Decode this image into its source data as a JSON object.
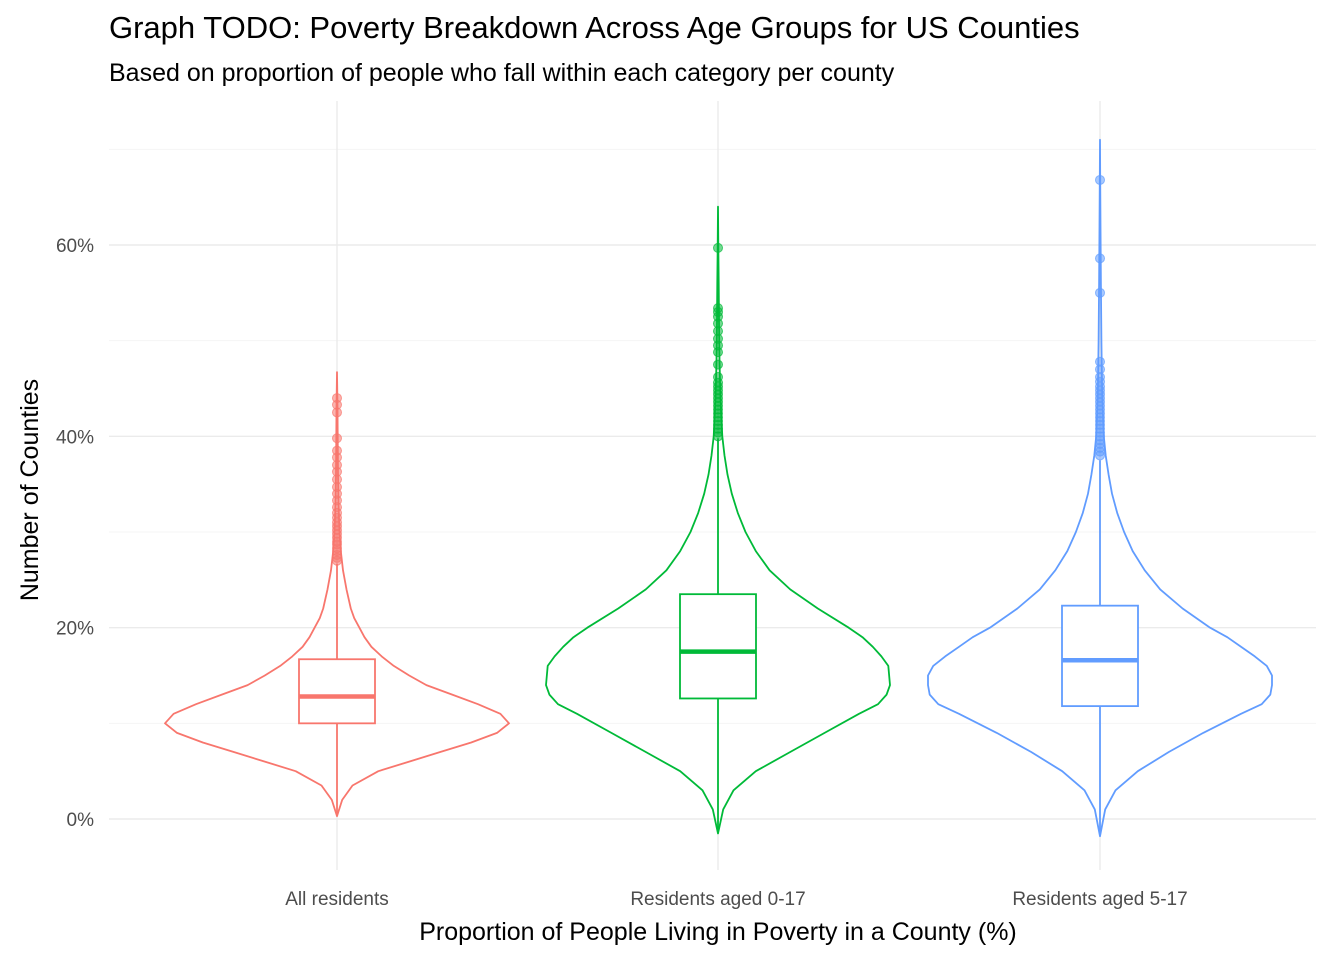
{
  "chart_data": {
    "type": "violin",
    "title": "Graph TODO: Poverty Breakdown Across Age Groups for US Counties",
    "subtitle": "Based on proportion of people who fall within each category per county",
    "xlabel": "Proportion of People Living in Poverty in a County (%)",
    "ylabel": "Number of Counties",
    "ylim": [
      -5,
      71
    ],
    "y_ticks": [
      0,
      20,
      40,
      60
    ],
    "y_tick_labels": [
      "0%",
      "20%",
      "40%",
      "60%"
    ],
    "grid": true,
    "legend": "none",
    "categories": [
      "All residents",
      "Residents aged 0-17",
      "Residents aged 5-17"
    ],
    "series": [
      {
        "name": "All residents",
        "color": "#F8766D",
        "violin": [
          [
            0.3,
            0.0
          ],
          [
            2,
            0.03
          ],
          [
            3.5,
            0.09
          ],
          [
            5,
            0.24
          ],
          [
            6,
            0.42
          ],
          [
            7,
            0.6
          ],
          [
            8,
            0.78
          ],
          [
            9,
            0.93
          ],
          [
            10,
            1.0
          ],
          [
            11,
            0.95
          ],
          [
            12,
            0.82
          ],
          [
            13,
            0.67
          ],
          [
            14,
            0.52
          ],
          [
            15,
            0.42
          ],
          [
            16,
            0.33
          ],
          [
            17,
            0.26
          ],
          [
            18,
            0.2
          ],
          [
            19,
            0.16
          ],
          [
            20,
            0.13
          ],
          [
            21,
            0.1
          ],
          [
            22,
            0.08
          ],
          [
            24,
            0.055
          ],
          [
            26,
            0.035
          ],
          [
            28,
            0.022
          ],
          [
            30,
            0.014
          ],
          [
            33,
            0.009
          ],
          [
            36,
            0.006
          ],
          [
            40,
            0.004
          ],
          [
            43,
            0.003
          ],
          [
            46.7,
            0.0
          ]
        ],
        "box": {
          "lower_whisker": 0.3,
          "q1": 10.0,
          "median": 12.8,
          "q3": 16.7,
          "upper_whisker": 26.7
        },
        "outliers": [
          27,
          27.3,
          27.6,
          28,
          28.3,
          28.7,
          29,
          29.4,
          29.8,
          30.2,
          30.6,
          31,
          31.5,
          32,
          32.6,
          33.3,
          34,
          34.7,
          35.5,
          36.3,
          37,
          37.8,
          38.5,
          39.8,
          42.5,
          43.3,
          44
        ]
      },
      {
        "name": "Residents aged 0-17",
        "color": "#00BA38",
        "violin": [
          [
            -1.5,
            0.0
          ],
          [
            1,
            0.03
          ],
          [
            3,
            0.09
          ],
          [
            5,
            0.22
          ],
          [
            7,
            0.42
          ],
          [
            9,
            0.62
          ],
          [
            11,
            0.82
          ],
          [
            12,
            0.93
          ],
          [
            13,
            0.98
          ],
          [
            14,
            1.0
          ],
          [
            16,
            0.99
          ],
          [
            17,
            0.95
          ],
          [
            18,
            0.9
          ],
          [
            19,
            0.84
          ],
          [
            20,
            0.76
          ],
          [
            22,
            0.58
          ],
          [
            24,
            0.42
          ],
          [
            26,
            0.3
          ],
          [
            28,
            0.22
          ],
          [
            30,
            0.16
          ],
          [
            32,
            0.115
          ],
          [
            34,
            0.08
          ],
          [
            36,
            0.055
          ],
          [
            38,
            0.038
          ],
          [
            40,
            0.025
          ],
          [
            44,
            0.014
          ],
          [
            48,
            0.009
          ],
          [
            52,
            0.006
          ],
          [
            56,
            0.004
          ],
          [
            60,
            0.002
          ],
          [
            64,
            0.0
          ]
        ],
        "box": {
          "lower_whisker": -1.5,
          "q1": 12.6,
          "median": 17.5,
          "q3": 23.5,
          "upper_whisker": 39.8
        },
        "outliers": [
          40,
          40.4,
          40.8,
          41.2,
          41.6,
          42,
          42.4,
          42.8,
          43.2,
          43.6,
          44,
          44.4,
          44.8,
          45.2,
          45.6,
          46.2,
          47.5,
          48.8,
          49.5,
          50.2,
          51,
          51.8,
          52.5,
          53,
          53.4,
          59.7
        ]
      },
      {
        "name": "Residents aged 5-17",
        "color": "#619CFF",
        "violin": [
          [
            -1.8,
            0.0
          ],
          [
            1,
            0.03
          ],
          [
            3,
            0.09
          ],
          [
            5,
            0.22
          ],
          [
            7,
            0.4
          ],
          [
            9,
            0.6
          ],
          [
            11,
            0.82
          ],
          [
            12,
            0.94
          ],
          [
            13,
            0.99
          ],
          [
            14,
            1.0
          ],
          [
            15,
            1.0
          ],
          [
            16,
            0.97
          ],
          [
            17,
            0.9
          ],
          [
            18,
            0.82
          ],
          [
            19,
            0.74
          ],
          [
            20,
            0.64
          ],
          [
            22,
            0.48
          ],
          [
            24,
            0.35
          ],
          [
            26,
            0.26
          ],
          [
            28,
            0.19
          ],
          [
            30,
            0.14
          ],
          [
            32,
            0.1
          ],
          [
            34,
            0.07
          ],
          [
            36,
            0.05
          ],
          [
            38,
            0.033
          ],
          [
            40,
            0.022
          ],
          [
            44,
            0.013
          ],
          [
            50,
            0.008
          ],
          [
            56,
            0.005
          ],
          [
            62,
            0.003
          ],
          [
            67,
            0.001
          ],
          [
            71,
            0.0
          ]
        ],
        "box": {
          "lower_whisker": -1.8,
          "q1": 11.8,
          "median": 16.6,
          "q3": 22.3,
          "upper_whisker": 37.5
        },
        "outliers": [
          38,
          38.4,
          38.8,
          39.2,
          39.6,
          40,
          40.4,
          40.8,
          41.2,
          41.6,
          42,
          42.4,
          42.8,
          43.2,
          43.6,
          44,
          44.4,
          44.8,
          45.2,
          45.7,
          46.2,
          47,
          47.8,
          55,
          58.6,
          66.8
        ]
      }
    ]
  }
}
